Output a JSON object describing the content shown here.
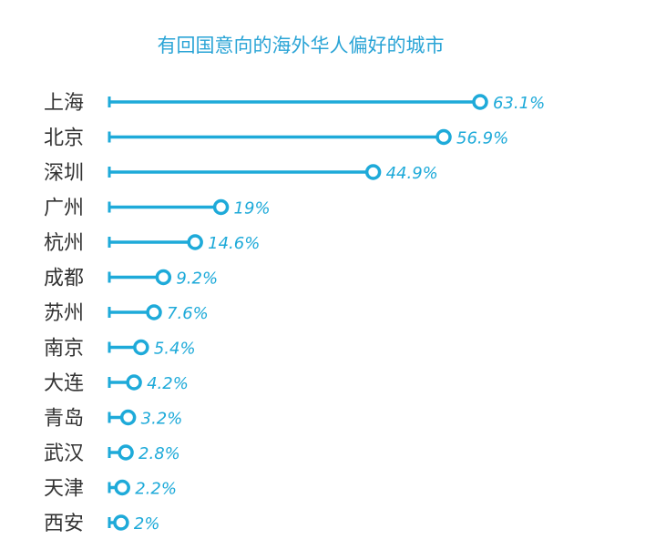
{
  "chart_data": {
    "type": "bar",
    "title": "有回国意向的海外华人偏好的城市",
    "xlabel": "",
    "ylabel": "",
    "xlim": [
      0,
      70
    ],
    "grid": false,
    "legend": "none",
    "colors": {
      "bar": "#1eaad9",
      "category_text": "#333333",
      "title": "#2aa4d6"
    },
    "categories": [
      "上海",
      "北京",
      "深圳",
      "广州",
      "杭州",
      "成都",
      "苏州",
      "南京",
      "大连",
      "青岛",
      "武汉",
      "天津",
      "西安"
    ],
    "values": [
      63.1,
      56.9,
      44.9,
      19,
      14.6,
      9.2,
      7.6,
      5.4,
      4.2,
      3.2,
      2.8,
      2.2,
      2
    ],
    "value_labels": [
      "63.1%",
      "56.9%",
      "44.9%",
      "19%",
      "14.6%",
      "9.2%",
      "7.6%",
      "5.4%",
      "4.2%",
      "3.2%",
      "2.8%",
      "2.2%",
      "2%"
    ]
  }
}
